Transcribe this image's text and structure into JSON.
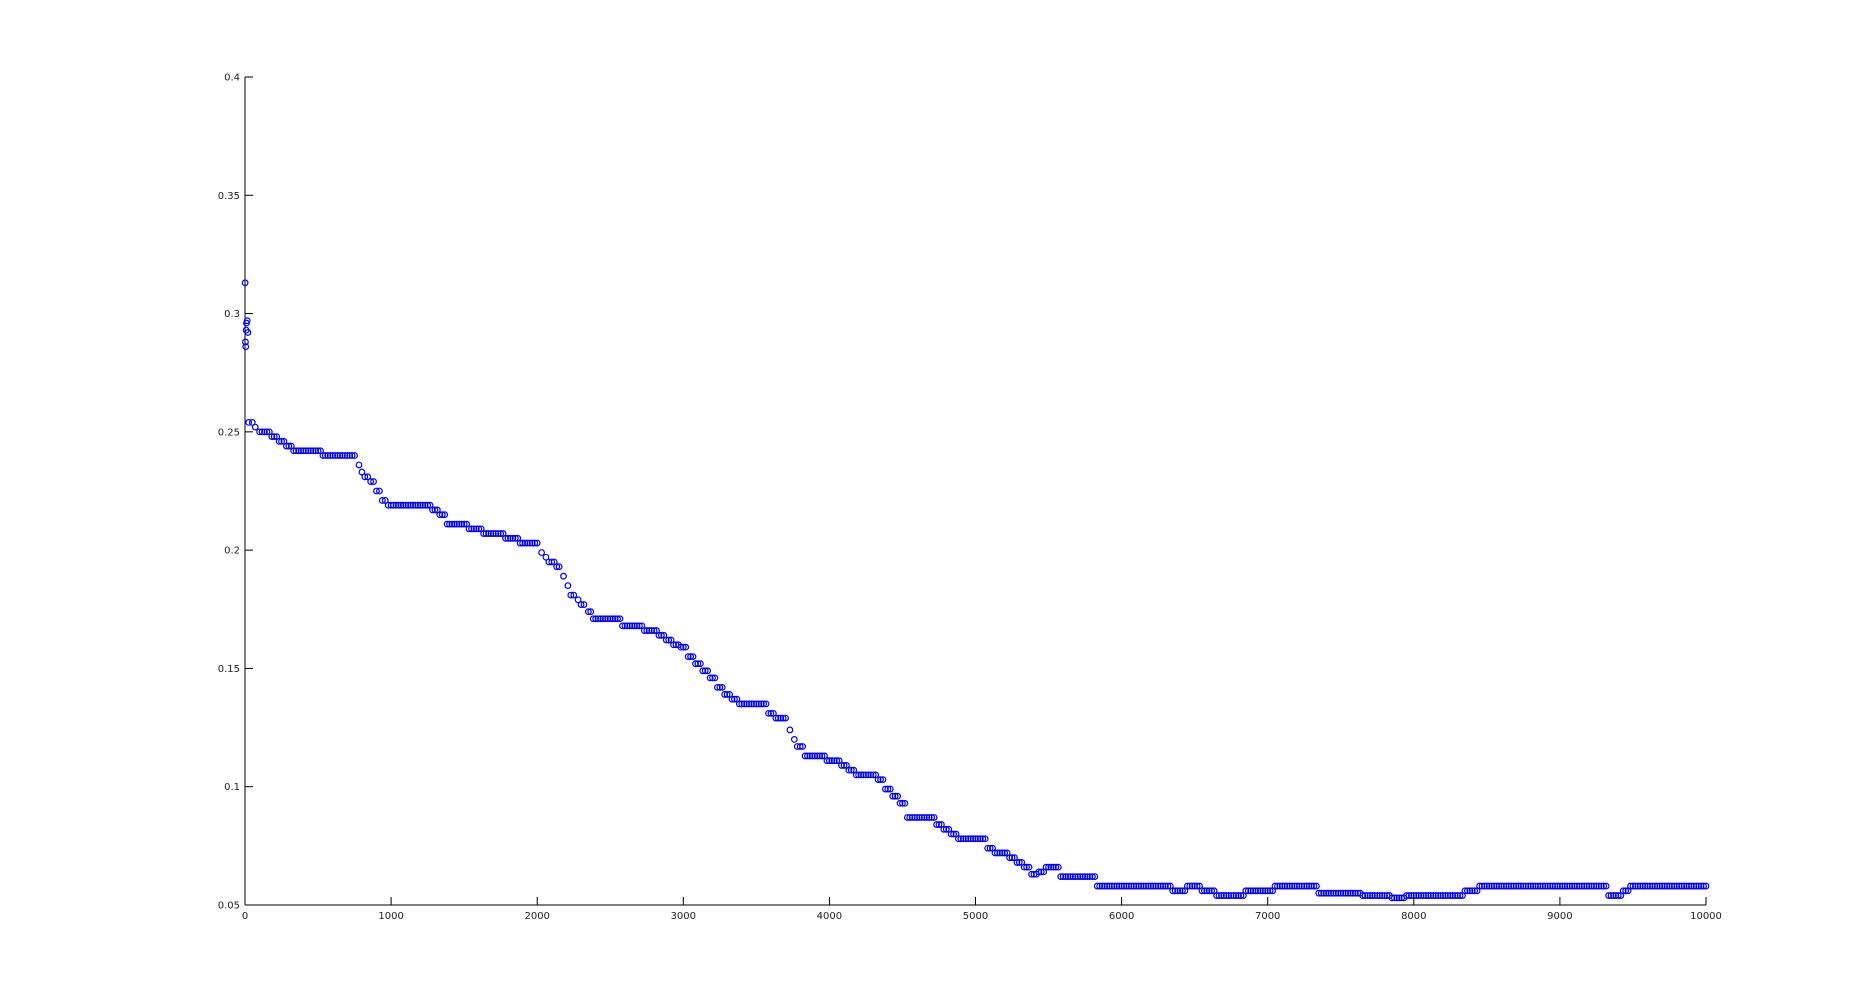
{
  "chart_data": {
    "type": "scatter",
    "title": "",
    "xlabel": "",
    "ylabel": "",
    "xlim": [
      0,
      10000
    ],
    "ylim": [
      0.05,
      0.4
    ],
    "grid": false,
    "x_ticks": [
      0,
      1000,
      2000,
      3000,
      4000,
      5000,
      6000,
      7000,
      8000,
      9000,
      10000
    ],
    "x_tick_labels": [
      "0",
      "1000",
      "2000",
      "3000",
      "4000",
      "5000",
      "6000",
      "7000",
      "8000",
      "9000",
      "10000"
    ],
    "y_ticks": [
      0.05,
      0.1,
      0.15,
      0.2,
      0.25,
      0.3,
      0.35,
      0.4
    ],
    "y_tick_labels": [
      "0.05",
      "0.1",
      "0.15",
      "0.2",
      "0.25",
      "0.3",
      "0.35",
      "0.4"
    ],
    "marker": "circle",
    "color": "#0000ff",
    "series": [
      {
        "points": [
          [
            1,
            0.313
          ],
          [
            3,
            0.288
          ],
          [
            5,
            0.286
          ],
          [
            8,
            0.293
          ],
          [
            10,
            0.296
          ],
          [
            15,
            0.297
          ],
          [
            20,
            0.292
          ],
          [
            25,
            0.254
          ],
          [
            50,
            0.254
          ],
          [
            70,
            0.252
          ],
          [
            100,
            0.25
          ],
          [
            150,
            0.25
          ],
          [
            200,
            0.248
          ],
          [
            250,
            0.246
          ],
          [
            300,
            0.244
          ],
          [
            350,
            0.242
          ],
          [
            400,
            0.242
          ],
          [
            450,
            0.242
          ],
          [
            500,
            0.242
          ],
          [
            550,
            0.24
          ],
          [
            600,
            0.24
          ],
          [
            650,
            0.24
          ],
          [
            700,
            0.24
          ],
          [
            750,
            0.24
          ],
          [
            780,
            0.236
          ],
          [
            800,
            0.233
          ],
          [
            840,
            0.231
          ],
          [
            880,
            0.229
          ],
          [
            920,
            0.225
          ],
          [
            940,
            0.221
          ],
          [
            1000,
            0.219
          ],
          [
            1050,
            0.219
          ],
          [
            1100,
            0.219
          ],
          [
            1150,
            0.219
          ],
          [
            1200,
            0.219
          ],
          [
            1250,
            0.219
          ],
          [
            1300,
            0.217
          ],
          [
            1350,
            0.215
          ],
          [
            1400,
            0.211
          ],
          [
            1450,
            0.211
          ],
          [
            1500,
            0.211
          ],
          [
            1550,
            0.209
          ],
          [
            1600,
            0.209
          ],
          [
            1650,
            0.207
          ],
          [
            1700,
            0.207
          ],
          [
            1750,
            0.207
          ],
          [
            1800,
            0.205
          ],
          [
            1850,
            0.205
          ],
          [
            1900,
            0.203
          ],
          [
            1950,
            0.203
          ],
          [
            2000,
            0.203
          ],
          [
            2030,
            0.199
          ],
          [
            2060,
            0.197
          ],
          [
            2100,
            0.195
          ],
          [
            2150,
            0.193
          ],
          [
            2180,
            0.189
          ],
          [
            2210,
            0.185
          ],
          [
            2250,
            0.181
          ],
          [
            2280,
            0.179
          ],
          [
            2320,
            0.177
          ],
          [
            2350,
            0.174
          ],
          [
            2400,
            0.171
          ],
          [
            2450,
            0.171
          ],
          [
            2500,
            0.171
          ],
          [
            2550,
            0.171
          ],
          [
            2600,
            0.168
          ],
          [
            2650,
            0.168
          ],
          [
            2700,
            0.168
          ],
          [
            2750,
            0.166
          ],
          [
            2800,
            0.166
          ],
          [
            2850,
            0.164
          ],
          [
            2900,
            0.162
          ],
          [
            2950,
            0.16
          ],
          [
            3000,
            0.159
          ],
          [
            3050,
            0.155
          ],
          [
            3100,
            0.152
          ],
          [
            3150,
            0.149
          ],
          [
            3200,
            0.146
          ],
          [
            3250,
            0.142
          ],
          [
            3300,
            0.139
          ],
          [
            3350,
            0.137
          ],
          [
            3400,
            0.135
          ],
          [
            3450,
            0.135
          ],
          [
            3500,
            0.135
          ],
          [
            3550,
            0.135
          ],
          [
            3600,
            0.131
          ],
          [
            3650,
            0.129
          ],
          [
            3700,
            0.129
          ],
          [
            3730,
            0.124
          ],
          [
            3760,
            0.12
          ],
          [
            3800,
            0.117
          ],
          [
            3850,
            0.113
          ],
          [
            3900,
            0.113
          ],
          [
            3950,
            0.113
          ],
          [
            4000,
            0.111
          ],
          [
            4050,
            0.111
          ],
          [
            4100,
            0.109
          ],
          [
            4150,
            0.107
          ],
          [
            4200,
            0.105
          ],
          [
            4250,
            0.105
          ],
          [
            4300,
            0.105
          ],
          [
            4350,
            0.103
          ],
          [
            4400,
            0.099
          ],
          [
            4450,
            0.096
          ],
          [
            4500,
            0.093
          ],
          [
            4550,
            0.087
          ],
          [
            4600,
            0.087
          ],
          [
            4650,
            0.087
          ],
          [
            4700,
            0.087
          ],
          [
            4750,
            0.084
          ],
          [
            4800,
            0.082
          ],
          [
            4850,
            0.08
          ],
          [
            4900,
            0.078
          ],
          [
            4950,
            0.078
          ],
          [
            5000,
            0.078
          ],
          [
            5050,
            0.078
          ],
          [
            5100,
            0.074
          ],
          [
            5150,
            0.072
          ],
          [
            5200,
            0.072
          ],
          [
            5250,
            0.07
          ],
          [
            5300,
            0.068
          ],
          [
            5350,
            0.066
          ],
          [
            5400,
            0.063
          ],
          [
            5450,
            0.064
          ],
          [
            5500,
            0.066
          ],
          [
            5550,
            0.066
          ],
          [
            5600,
            0.062
          ],
          [
            5650,
            0.062
          ],
          [
            5700,
            0.062
          ],
          [
            5750,
            0.062
          ],
          [
            5800,
            0.062
          ],
          [
            5850,
            0.058
          ],
          [
            5900,
            0.058
          ],
          [
            5950,
            0.058
          ],
          [
            6000,
            0.058
          ],
          [
            6100,
            0.058
          ],
          [
            6200,
            0.058
          ],
          [
            6300,
            0.058
          ],
          [
            6400,
            0.056
          ],
          [
            6500,
            0.058
          ],
          [
            6600,
            0.056
          ],
          [
            6700,
            0.054
          ],
          [
            6800,
            0.054
          ],
          [
            6900,
            0.056
          ],
          [
            7000,
            0.056
          ],
          [
            7100,
            0.058
          ],
          [
            7200,
            0.058
          ],
          [
            7300,
            0.058
          ],
          [
            7400,
            0.055
          ],
          [
            7500,
            0.055
          ],
          [
            7600,
            0.055
          ],
          [
            7700,
            0.054
          ],
          [
            7800,
            0.054
          ],
          [
            7900,
            0.053
          ],
          [
            8000,
            0.054
          ],
          [
            8100,
            0.054
          ],
          [
            8200,
            0.054
          ],
          [
            8300,
            0.054
          ],
          [
            8400,
            0.056
          ],
          [
            8500,
            0.058
          ],
          [
            8600,
            0.058
          ],
          [
            8700,
            0.058
          ],
          [
            8800,
            0.058
          ],
          [
            8900,
            0.058
          ],
          [
            9000,
            0.058
          ],
          [
            9100,
            0.058
          ],
          [
            9200,
            0.058
          ],
          [
            9300,
            0.058
          ],
          [
            9350,
            0.054
          ],
          [
            9400,
            0.054
          ],
          [
            9450,
            0.056
          ],
          [
            9500,
            0.058
          ],
          [
            9600,
            0.058
          ],
          [
            9700,
            0.058
          ],
          [
            9800,
            0.058
          ],
          [
            9900,
            0.058
          ],
          [
            10000,
            0.058
          ]
        ]
      }
    ]
  }
}
